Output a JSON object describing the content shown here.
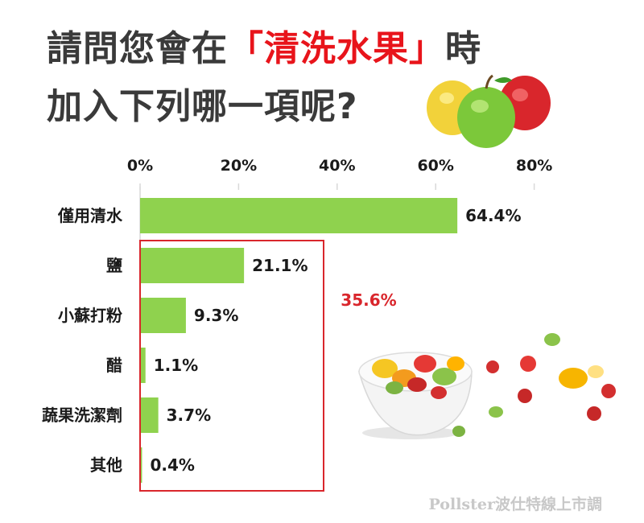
{
  "title": {
    "line1_pre": "請問您會在",
    "line1_highlight": "「清洗水果」",
    "line1_post": "時",
    "line2": "加入下列哪一項呢?"
  },
  "colors": {
    "bar": "#8fd24e",
    "accent": "#e8141b",
    "group_box": "#d9262c",
    "title": "#3a3a3a"
  },
  "chart_data": {
    "type": "bar",
    "orientation": "horizontal",
    "categories": [
      "僅用清水",
      "鹽",
      "小蘇打粉",
      "醋",
      "蔬果洗潔劑",
      "其他"
    ],
    "values": [
      64.4,
      21.1,
      9.3,
      1.1,
      3.7,
      0.4
    ],
    "value_labels": [
      "64.4%",
      "21.1%",
      "9.3%",
      "1.1%",
      "3.7%",
      "0.4%"
    ],
    "xlim": [
      0,
      80
    ],
    "xticks": [
      0,
      20,
      40,
      60,
      80
    ],
    "xtick_labels": [
      "0%",
      "20%",
      "40%",
      "60%",
      "80%"
    ],
    "tick_position": "top",
    "grid": false,
    "group_annotation": {
      "label": "35.6%",
      "categories": [
        "鹽",
        "小蘇打粉",
        "醋",
        "蔬果洗潔劑",
        "其他"
      ]
    }
  },
  "source": "Pollster波仕特線上市調",
  "decorations": [
    "apples-image",
    "fruit-bowl-image",
    "scattered-fruit-image"
  ]
}
